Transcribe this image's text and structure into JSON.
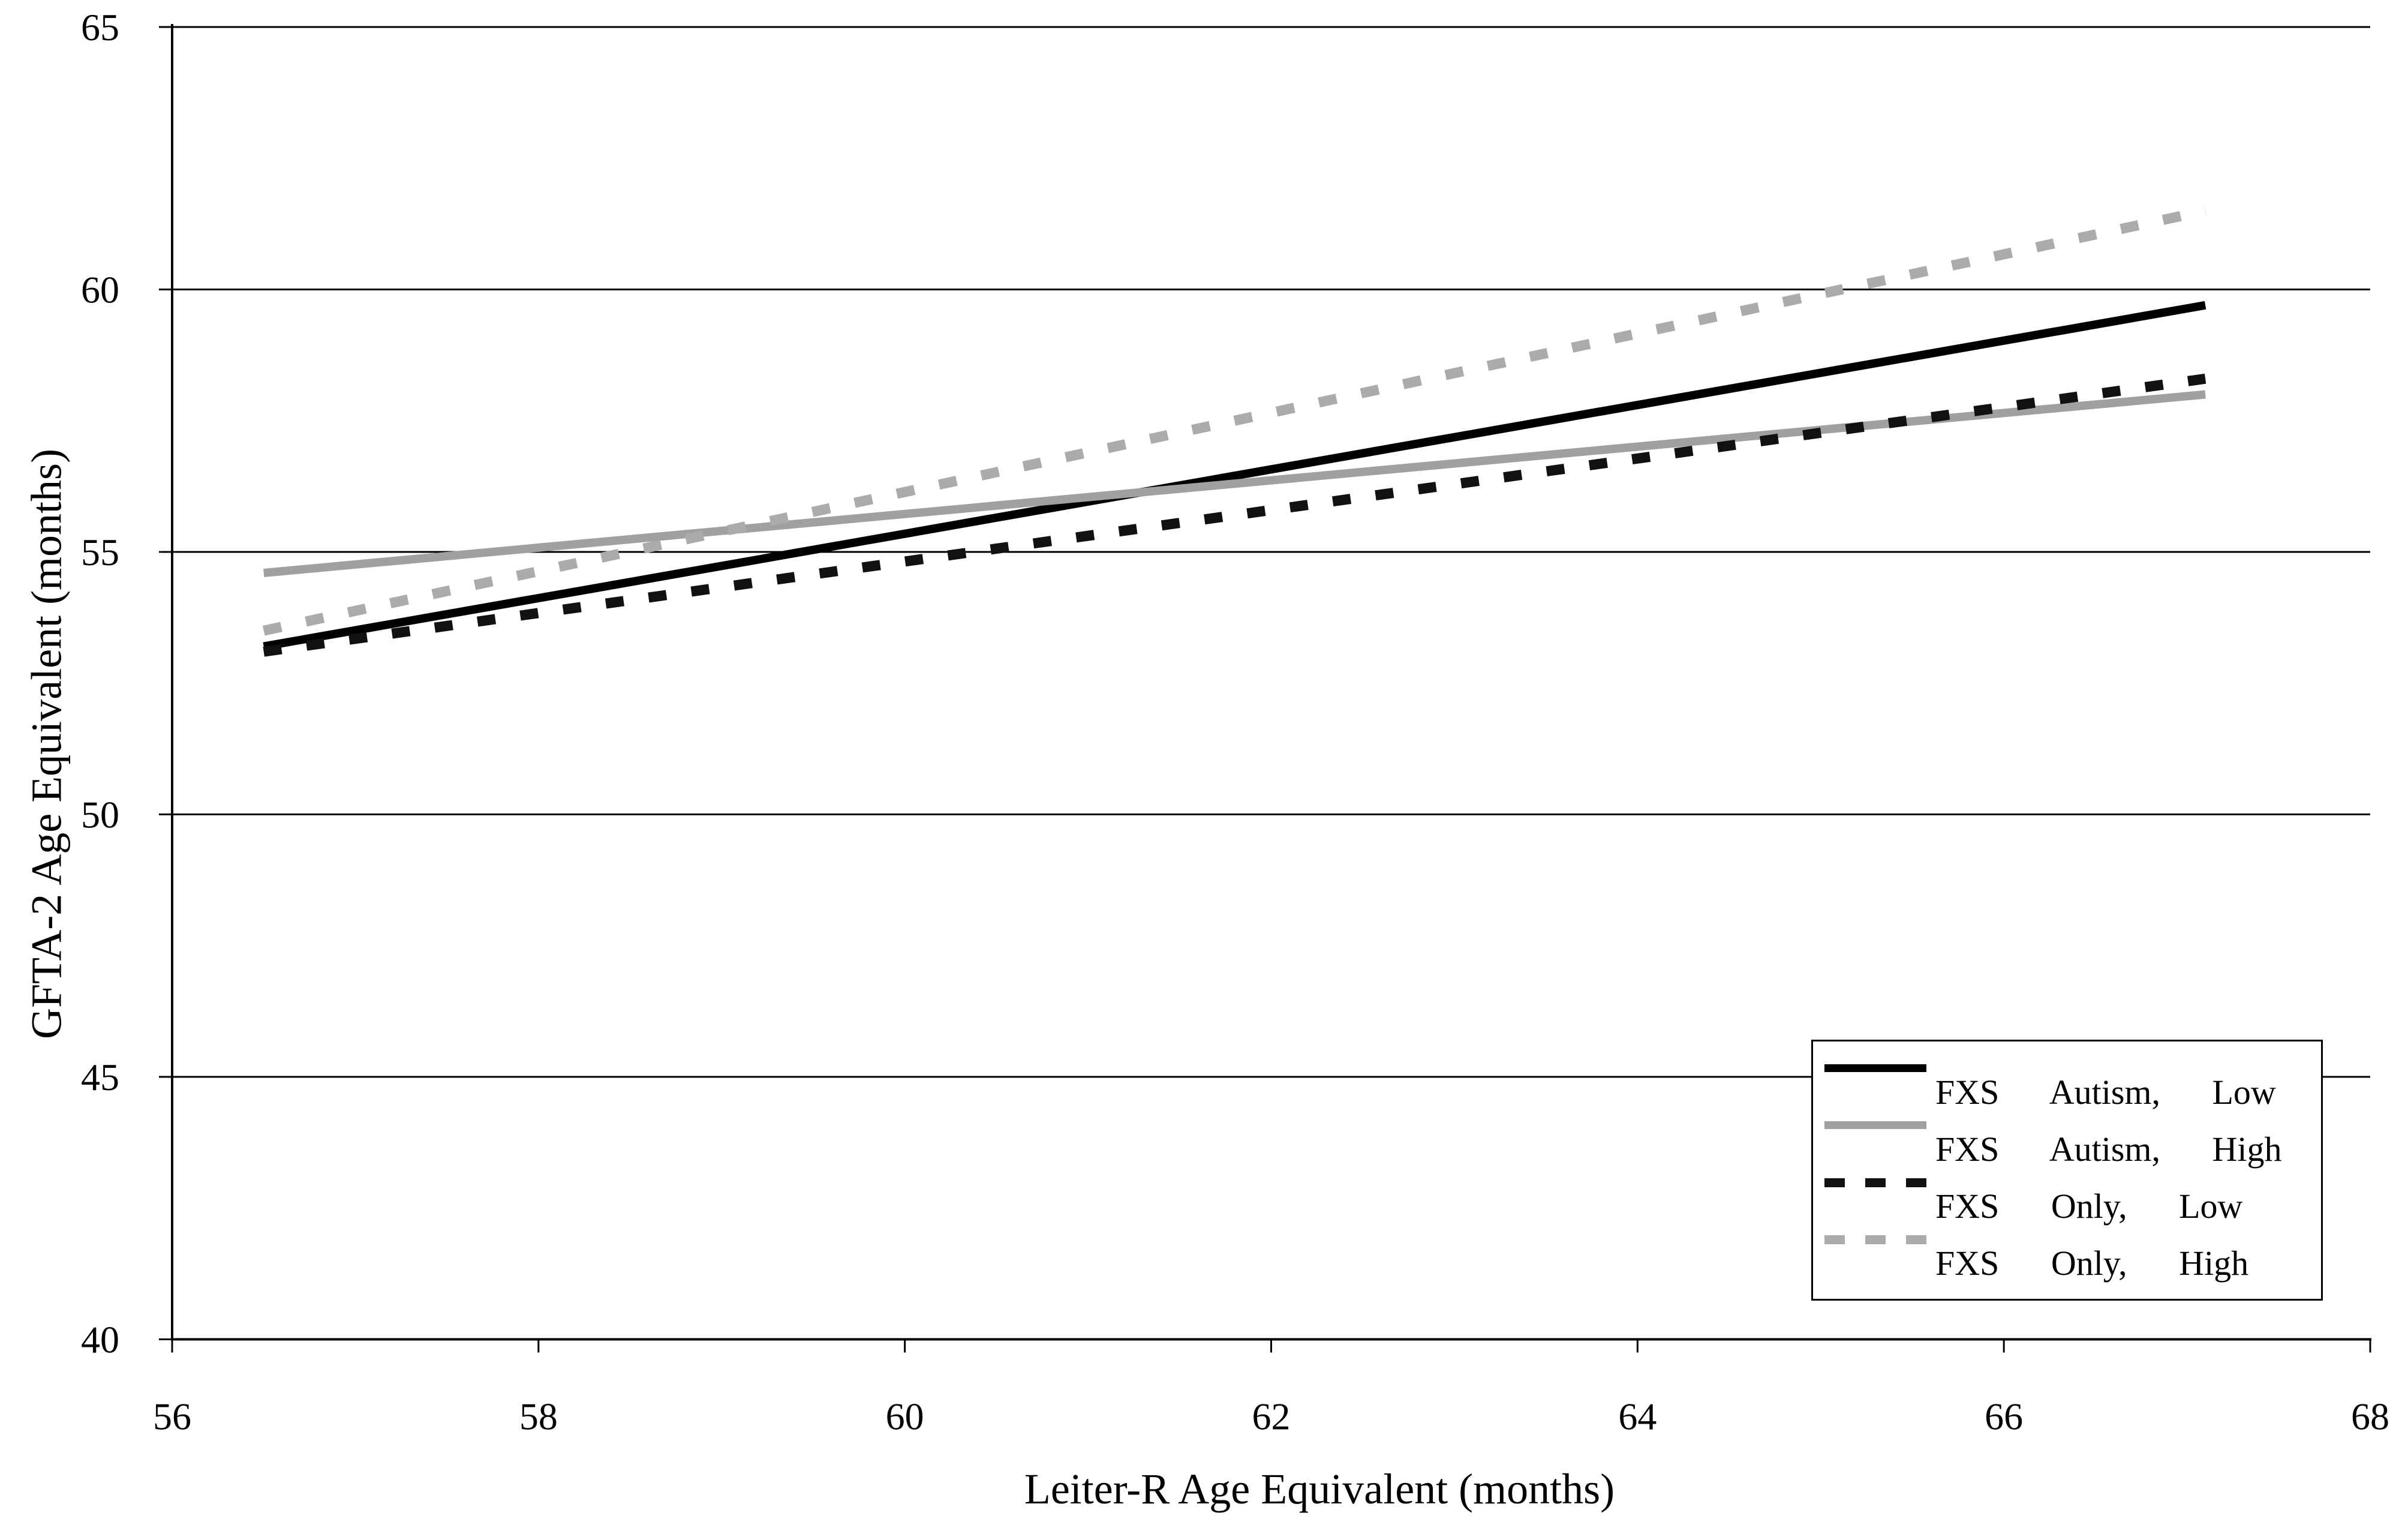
{
  "chart_data": {
    "type": "line",
    "title": "",
    "xlabel": "Leiter-R Age Equivalent (months)",
    "ylabel": "GFTA-2 Age Equivalent (months)",
    "xlim": [
      56,
      68
    ],
    "ylim": [
      40,
      65
    ],
    "x_ticks": [
      56,
      58,
      60,
      62,
      64,
      66,
      68
    ],
    "y_ticks": [
      40,
      45,
      50,
      55,
      60,
      65
    ],
    "grid": "horizontal-only",
    "legend_position": "inside-lower-right",
    "axis_color": "#000000",
    "background_color": "#ffffff",
    "series": [
      {
        "name": "FXS Autism, Low",
        "style": "solid",
        "color": "#000000",
        "x": [
          56.5,
          67.1
        ],
        "y": [
          53.2,
          59.7
        ]
      },
      {
        "name": "FXS Autism, High",
        "style": "solid",
        "color": "#a0a0a0",
        "x": [
          56.5,
          67.1
        ],
        "y": [
          54.6,
          58.0
        ]
      },
      {
        "name": "FXS Only, Low",
        "style": "dashed",
        "color": "#111111",
        "x": [
          56.5,
          67.1
        ],
        "y": [
          53.1,
          58.3
        ]
      },
      {
        "name": "FXS Only, High",
        "style": "dashed",
        "color": "#ababab",
        "x": [
          56.5,
          67.1
        ],
        "y": [
          53.5,
          61.5
        ]
      }
    ]
  }
}
